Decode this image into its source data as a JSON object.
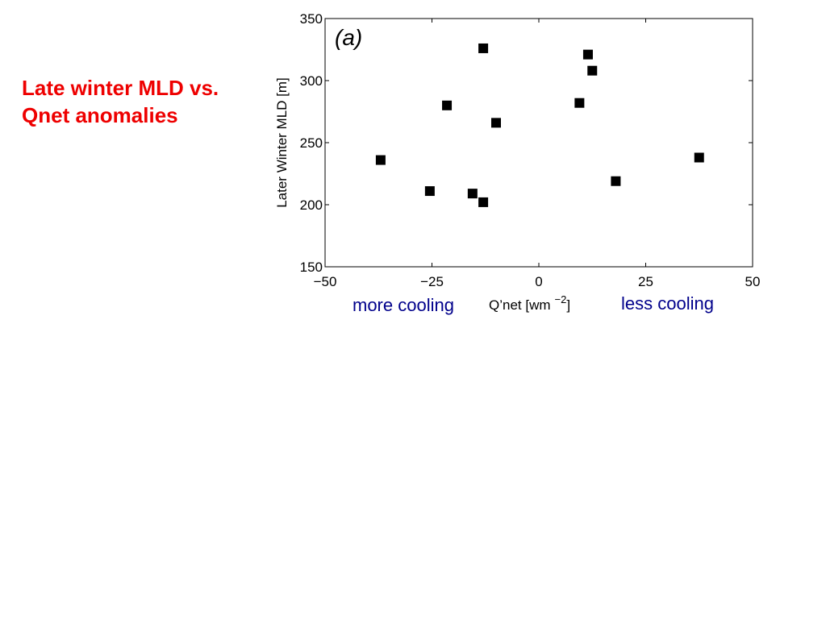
{
  "slide": {
    "title_lines": [
      "Late winter MLD vs.",
      "Qnet anomalies"
    ]
  },
  "annotations": {
    "left": "more cooling",
    "right": "less cooling"
  },
  "colors": {
    "title": "#ee0000",
    "annotation": "#00008b",
    "marker": "#000000"
  },
  "chart_data": {
    "type": "scatter",
    "panel_label": "(a)",
    "xlabel": "Q’net [wm",
    "xlabel_superscript": "−2",
    "xlabel_suffix": "]",
    "ylabel": "Later Winter MLD [m]",
    "xlim": [
      -50,
      50
    ],
    "ylim": [
      150,
      350
    ],
    "xticks": [
      -50,
      -25,
      0,
      25,
      50
    ],
    "xtick_labels": [
      "−50",
      "−25",
      "0",
      "25",
      "50"
    ],
    "yticks": [
      150,
      200,
      250,
      300,
      350
    ],
    "ytick_labels": [
      "150",
      "200",
      "250",
      "300",
      "350"
    ],
    "grid": false,
    "marker": "square",
    "series": [
      {
        "points": [
          {
            "x": -37,
            "y": 236
          },
          {
            "x": -25.5,
            "y": 211
          },
          {
            "x": -21.5,
            "y": 280
          },
          {
            "x": -15.5,
            "y": 209
          },
          {
            "x": -13,
            "y": 202
          },
          {
            "x": -13,
            "y": 326
          },
          {
            "x": -10,
            "y": 266
          },
          {
            "x": 9.5,
            "y": 282
          },
          {
            "x": 11.5,
            "y": 321
          },
          {
            "x": 12.5,
            "y": 308
          },
          {
            "x": 18,
            "y": 219
          },
          {
            "x": 37.5,
            "y": 238
          }
        ]
      }
    ]
  }
}
